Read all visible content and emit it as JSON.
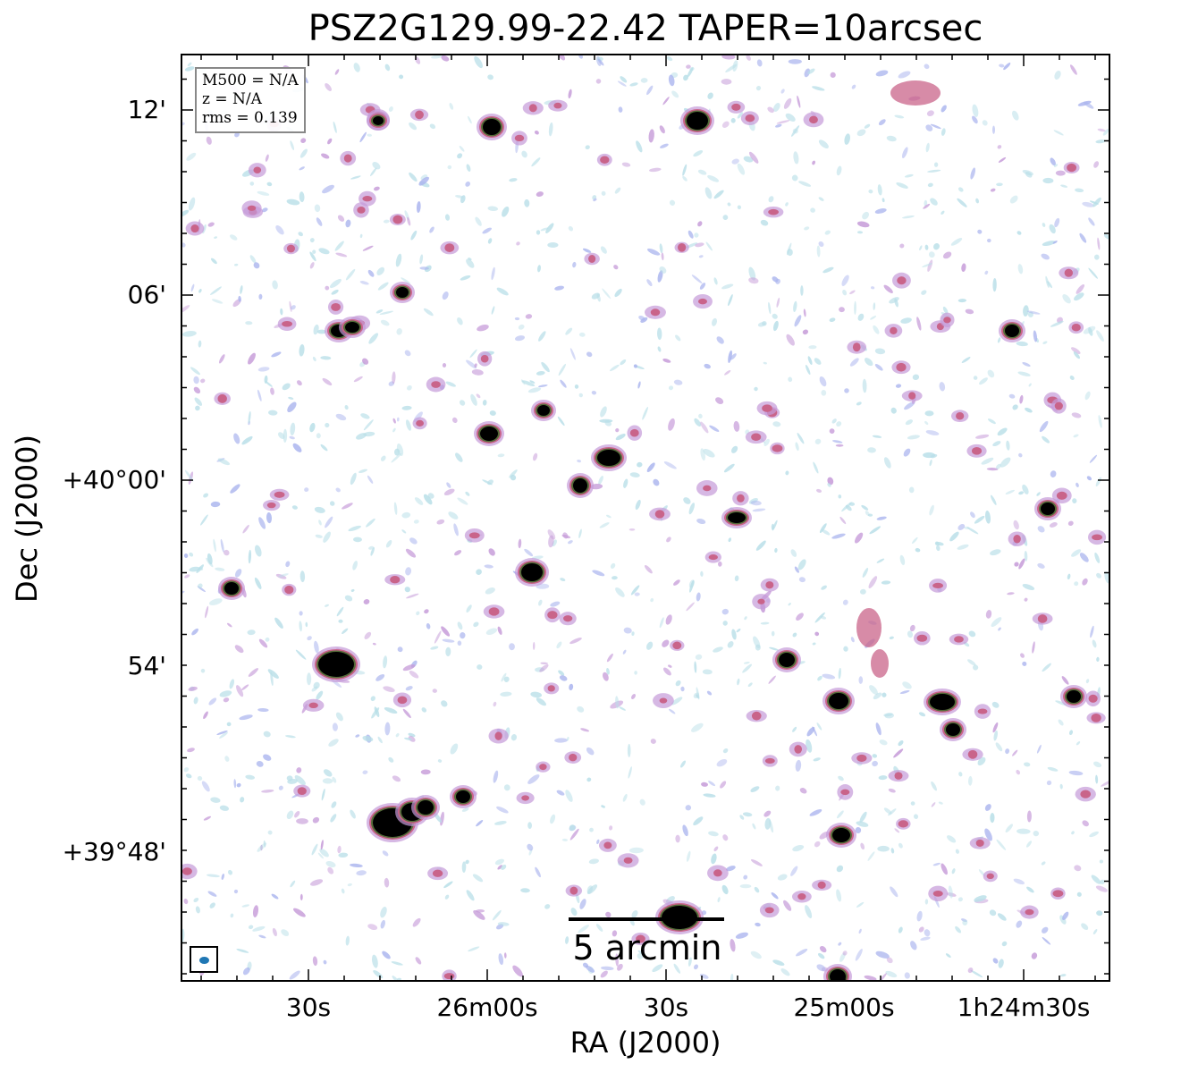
{
  "title": "PSZ2G129.99-22.42 TAPER=10arcsec",
  "info_box": {
    "mass": "M500 = N/A",
    "redshift": "z = N/A",
    "rms": "rms = 0.139"
  },
  "scale_bar": {
    "label": "5 arcmin"
  },
  "axes": {
    "xlabel": "RA (J2000)",
    "ylabel": "Dec (J2000)",
    "x_tick_labels": [
      "30s",
      "26m00s",
      "30s",
      "25m00s",
      "1h24m30s"
    ],
    "y_tick_labels": [
      "12'",
      "06'",
      "+40°00'",
      "54'",
      "+39°48'"
    ]
  },
  "colors": {
    "noise_light": "#b9dfe8",
    "noise_blue": "#aab4ee",
    "noise_violet": "#c59ad8",
    "source_magenta": "#c9648a",
    "source_green": "#556b3a",
    "source_core": "#000000",
    "beam": "#1f77b4"
  }
}
